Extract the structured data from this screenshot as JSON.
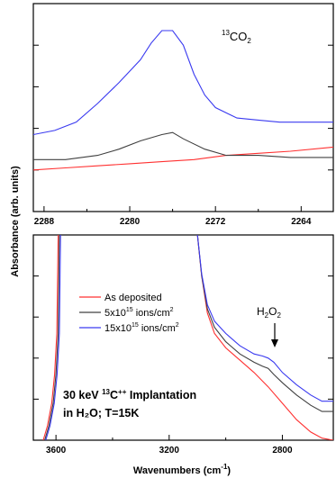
{
  "colors": {
    "as_deposited": "#ff3030",
    "dose_5e15": "#404040",
    "dose_15e15": "#3a3af0",
    "axis": "#000000"
  },
  "labels": {
    "ylabel": "Absorbance (arb. units)",
    "xlabel_main": "Wavenumbers (cm",
    "xlabel_sup": "-1",
    "xlabel_close": ")",
    "top_annot_sup": "13",
    "top_annot_base": "CO",
    "top_annot_sub": "2",
    "h2o2_base": "H",
    "h2o2_sub1": "2",
    "h2o2_mid": "O",
    "h2o2_sub2": "2",
    "implant_line1_a": "30 keV ",
    "implant_line1_sup": "13",
    "implant_line1_b": "C",
    "implant_line1_sup2": "++",
    "implant_line1_c": " Implantation",
    "implant_line2": "in H₂O; T=15K"
  },
  "legend": [
    {
      "key": "as_deposited",
      "text": "As deposited",
      "parts": [
        "As deposited",
        "",
        ""
      ]
    },
    {
      "key": "dose_5e15",
      "text": "5x10 15 ions/cm 2",
      "parts": [
        "5x10",
        "15",
        " ions/cm",
        "2"
      ]
    },
    {
      "key": "dose_15e15",
      "text": "15x10 15 ions/cm 2",
      "parts": [
        "15x10",
        "15",
        " ions/cm",
        "2"
      ]
    }
  ],
  "chart_data": [
    {
      "type": "line",
      "panel": "top",
      "xlabel": "",
      "ylabel": "",
      "xlim": [
        2289,
        2261
      ],
      "ylim": [
        0,
        1
      ],
      "xticks": [
        2288,
        2280,
        2272,
        2264
      ],
      "series": [
        {
          "key": "as_deposited",
          "x": [
            2289,
            2286,
            2283,
            2280,
            2277,
            2274,
            2271,
            2268,
            2265,
            2261
          ],
          "y": [
            0.2,
            0.21,
            0.22,
            0.23,
            0.24,
            0.25,
            0.27,
            0.28,
            0.29,
            0.31
          ]
        },
        {
          "key": "dose_5e15",
          "x": [
            2289,
            2286,
            2283,
            2281,
            2279,
            2277,
            2276,
            2275,
            2273,
            2271,
            2268,
            2265,
            2261
          ],
          "y": [
            0.25,
            0.25,
            0.27,
            0.3,
            0.34,
            0.37,
            0.38,
            0.35,
            0.3,
            0.27,
            0.27,
            0.26,
            0.26
          ]
        },
        {
          "key": "dose_15e15",
          "x": [
            2289,
            2287,
            2285,
            2283,
            2281,
            2279,
            2278,
            2277,
            2276,
            2275,
            2274,
            2273,
            2272,
            2270,
            2268,
            2266,
            2264,
            2261
          ],
          "y": [
            0.37,
            0.39,
            0.43,
            0.52,
            0.62,
            0.73,
            0.81,
            0.87,
            0.87,
            0.8,
            0.66,
            0.56,
            0.5,
            0.45,
            0.44,
            0.43,
            0.43,
            0.43
          ]
        }
      ]
    },
    {
      "type": "line",
      "panel": "bottom",
      "xlabel": "Wavenumbers (cm-1)",
      "ylabel": "Absorbance (arb. units)",
      "xlim": [
        3680,
        2620
      ],
      "ylim": [
        0,
        1
      ],
      "xticks": [
        3600,
        3200,
        2800
      ],
      "series": [
        {
          "key": "as_deposited",
          "x": [
            3645,
            3630,
            3615,
            3605,
            3597,
            3592,
            null,
            3100,
            3085,
            3065,
            3040,
            3000,
            2950,
            2900,
            2850,
            2800,
            2750,
            2700,
            2660,
            2620
          ],
          "y": [
            0.0,
            0.07,
            0.18,
            0.32,
            0.52,
            1.0,
            null,
            1.0,
            0.8,
            0.62,
            0.52,
            0.45,
            0.39,
            0.33,
            0.26,
            0.18,
            0.1,
            0.04,
            0.01,
            0.0
          ]
        },
        {
          "key": "dose_5e15",
          "x": [
            3640,
            3625,
            3610,
            3600,
            3592,
            3588,
            null,
            3100,
            3085,
            3065,
            3040,
            3000,
            2950,
            2900,
            2870,
            2850,
            2830,
            2800,
            2750,
            2700,
            2660,
            2620
          ],
          "y": [
            0.0,
            0.07,
            0.18,
            0.32,
            0.52,
            1.0,
            null,
            1.0,
            0.8,
            0.64,
            0.55,
            0.48,
            0.42,
            0.38,
            0.36,
            0.35,
            0.32,
            0.28,
            0.22,
            0.17,
            0.14,
            0.14
          ]
        },
        {
          "key": "dose_15e15",
          "x": [
            3636,
            3621,
            3606,
            3596,
            3588,
            3584,
            null,
            3100,
            3085,
            3065,
            3040,
            3000,
            2950,
            2900,
            2870,
            2850,
            2830,
            2800,
            2750,
            2700,
            2660,
            2620
          ],
          "y": [
            0.0,
            0.07,
            0.18,
            0.32,
            0.52,
            1.0,
            null,
            1.0,
            0.81,
            0.66,
            0.58,
            0.52,
            0.46,
            0.42,
            0.41,
            0.4,
            0.38,
            0.33,
            0.27,
            0.22,
            0.19,
            0.19
          ]
        }
      ]
    }
  ]
}
